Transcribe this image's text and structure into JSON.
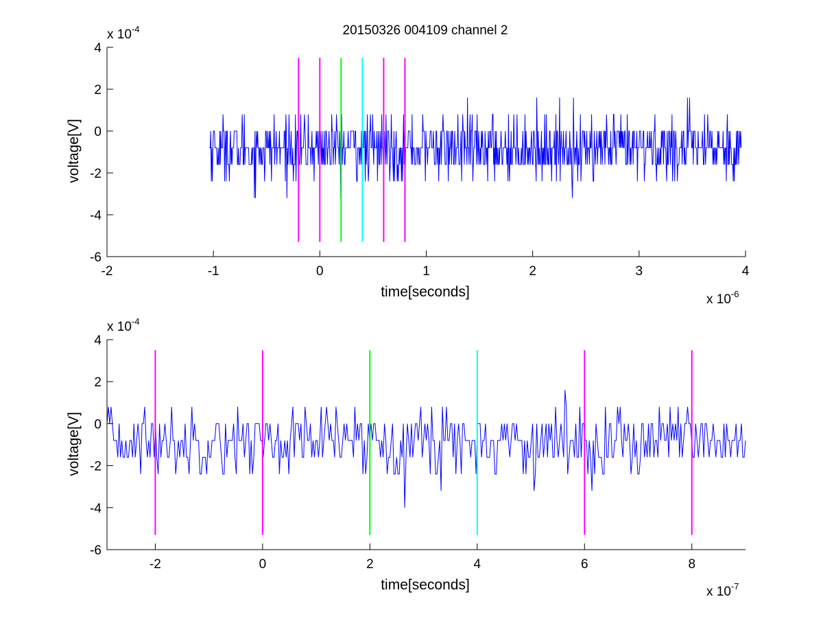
{
  "figure": {
    "title": "20150326 004109 channel 2",
    "background": "#ffffff"
  },
  "chart_data": [
    {
      "type": "line",
      "title": "20150326 004109 channel 2",
      "xlabel": "time[seconds]",
      "ylabel": "voltage[V]",
      "x_exponent_label": "x 10",
      "x_exponent": "-6",
      "y_exponent_label": "x 10",
      "y_exponent": "-4",
      "xlim": [
        -2,
        4
      ],
      "ylim": [
        -6,
        4
      ],
      "xticks": [
        -2,
        -1,
        0,
        1,
        2,
        3,
        4
      ],
      "yticks": [
        -6,
        -4,
        -2,
        0,
        2,
        4
      ],
      "grid": false,
      "series": [
        {
          "color": "#0000ff",
          "x_range": [
            -1.04,
            3.96
          ],
          "sample_levels": [
            -4,
            -3.2,
            -2.4,
            -1.6,
            -0.8,
            0,
            0.8,
            1.6,
            2.4,
            3.2
          ],
          "baseline": -0.8,
          "noise_sd": 0.75,
          "points": 1000
        }
      ],
      "markers": [
        {
          "x": -0.2,
          "color": "#ff00ff",
          "y_range": [
            -5.3,
            3.5
          ]
        },
        {
          "x": 0.0,
          "color": "#ff00ff",
          "y_range": [
            -5.3,
            3.5
          ]
        },
        {
          "x": 0.2,
          "color": "#00ff00",
          "y_range": [
            -5.3,
            3.5
          ]
        },
        {
          "x": 0.4,
          "color": "#00ffff",
          "y_range": [
            -5.3,
            3.5
          ]
        },
        {
          "x": 0.6,
          "color": "#ff00ff",
          "y_range": [
            -5.3,
            3.5
          ]
        },
        {
          "x": 0.8,
          "color": "#ff00ff",
          "y_range": [
            -5.3,
            3.5
          ]
        }
      ]
    },
    {
      "type": "line",
      "title": "",
      "xlabel": "time[seconds]",
      "ylabel": "voltage[V]",
      "x_exponent_label": "x 10",
      "x_exponent": "-7",
      "y_exponent_label": "x 10",
      "y_exponent": "-4",
      "xlim": [
        -2.9,
        9
      ],
      "ylim": [
        -6,
        4
      ],
      "xticks": [
        -2,
        0,
        2,
        4,
        6,
        8
      ],
      "yticks": [
        -6,
        -4,
        -2,
        0,
        2,
        4
      ],
      "grid": false,
      "series": [
        {
          "color": "#0000ff",
          "x_range": [
            -2.9,
            9
          ],
          "sample_levels": [
            -4.8,
            -4,
            -3.2,
            -2.4,
            -1.6,
            -0.8,
            0,
            0.8,
            1.6,
            2.4
          ],
          "baseline": -0.8,
          "noise_sd": 0.8,
          "points": 475
        }
      ],
      "markers": [
        {
          "x": -2,
          "color": "#ff00ff",
          "y_range": [
            -5.3,
            3.5
          ]
        },
        {
          "x": 0,
          "color": "#ff00ff",
          "y_range": [
            -5.3,
            3.5
          ]
        },
        {
          "x": 2,
          "color": "#00ff00",
          "y_range": [
            -5.3,
            3.5
          ]
        },
        {
          "x": 4,
          "color": "#00ffff",
          "y_range": [
            -5.3,
            3.5
          ]
        },
        {
          "x": 6,
          "color": "#ff00ff",
          "y_range": [
            -5.3,
            3.5
          ]
        },
        {
          "x": 8,
          "color": "#ff00ff",
          "y_range": [
            -5.3,
            3.5
          ]
        }
      ]
    }
  ]
}
